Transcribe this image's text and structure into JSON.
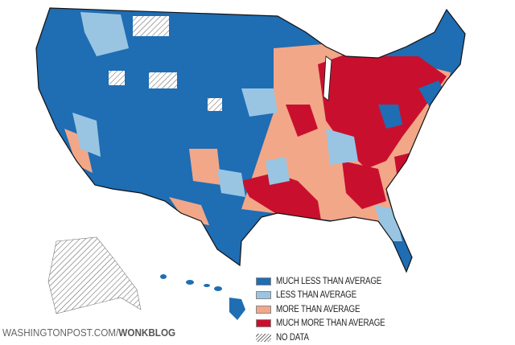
{
  "legend": {
    "items": [
      {
        "label": "MUCH LESS THAN AVERAGE",
        "color": "#1f6db3"
      },
      {
        "label": "LESS THAN AVERAGE",
        "color": "#99c5e3"
      },
      {
        "label": "MORE THAN AVERAGE",
        "color": "#f2a788"
      },
      {
        "label": "MUCH MORE THAN AVERAGE",
        "color": "#c8102e"
      },
      {
        "label": "NO DATA",
        "color": "hatch"
      }
    ]
  },
  "footer": {
    "site": "WASHINGTONPOST.COM/",
    "blog": "WONKBLOG"
  }
}
